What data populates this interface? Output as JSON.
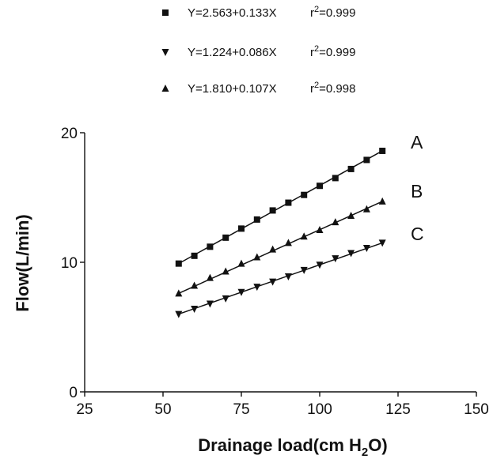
{
  "chart_data": {
    "type": "scatter",
    "xlabel": "Drainage load(cm H",
    "xlabel_subscript": "2",
    "xlabel_suffix": "O)",
    "ylabel": "Flow(L/min)",
    "xlim": [
      25,
      150
    ],
    "ylim": [
      0,
      20
    ],
    "x_ticks": [
      "25",
      "50",
      "75",
      "100",
      "125",
      "150"
    ],
    "y_ticks": [
      "0",
      "10",
      "20"
    ],
    "grid": false,
    "x": [
      55,
      60,
      65,
      70,
      75,
      80,
      85,
      90,
      95,
      100,
      105,
      110,
      115,
      120
    ],
    "series": [
      {
        "name": "A",
        "marker": "square",
        "equation": "Y=2.563+0.133X",
        "r2_label": "r",
        "r2_sup": "2",
        "r2_value": "=0.999",
        "values": [
          9.9,
          10.5,
          11.2,
          11.9,
          12.6,
          13.3,
          14.0,
          14.6,
          15.2,
          15.9,
          16.5,
          17.2,
          17.9,
          18.6
        ]
      },
      {
        "name": "B",
        "marker": "triangle-up",
        "equation": "Y=1.810+0.107X",
        "r2_label": "r",
        "r2_sup": "2",
        "r2_value": "=0.998",
        "values": [
          7.6,
          8.2,
          8.8,
          9.3,
          9.9,
          10.4,
          11.0,
          11.5,
          12.0,
          12.5,
          13.1,
          13.6,
          14.1,
          14.7
        ]
      },
      {
        "name": "C",
        "marker": "triangle-down",
        "equation": "Y=1.224+0.086X",
        "r2_label": "r",
        "r2_sup": "2",
        "r2_value": "=0.999",
        "values": [
          6.0,
          6.4,
          6.8,
          7.2,
          7.7,
          8.1,
          8.5,
          8.9,
          9.4,
          9.8,
          10.3,
          10.7,
          11.1,
          11.5
        ]
      }
    ],
    "legend_order": [
      "A",
      "C",
      "B"
    ],
    "colors": {
      "ink": "#111111",
      "background": "#ffffff"
    }
  }
}
